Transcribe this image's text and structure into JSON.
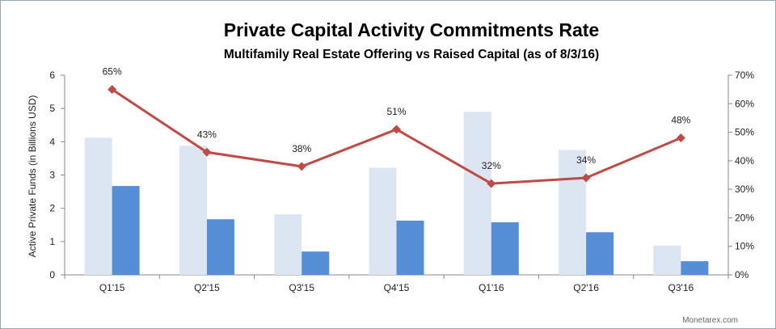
{
  "chart_data": {
    "type": "bar",
    "title": "Private Capital Activity Commitments Rate",
    "subtitle": "Multifamily Real Estate Offering vs Raised Capital (as of 8/3/16)",
    "ylabel": "Active Private Funds (in Billions USD)",
    "categories": [
      "Q1'15",
      "Q2'15",
      "Q3'15",
      "Q4'15",
      "Q1'16",
      "Q2'16",
      "Q3'16"
    ],
    "ylim": [
      0,
      6
    ],
    "y_ticks": [
      "0",
      "1",
      "2",
      "3",
      "4",
      "5",
      "6"
    ],
    "y2lim": [
      0,
      70
    ],
    "y2_ticks": [
      "0%",
      "10%",
      "20%",
      "30%",
      "40%",
      "50%",
      "60%",
      "70%"
    ],
    "grid": false,
    "legend": "none",
    "series": [
      {
        "kind": "bar",
        "values": [
          4.12,
          3.88,
          1.82,
          3.22,
          4.9,
          3.75,
          0.88
        ],
        "color": "#dce6f2"
      },
      {
        "kind": "bar",
        "values": [
          2.67,
          1.67,
          0.7,
          1.63,
          1.58,
          1.28,
          0.41
        ],
        "color": "#558ed5"
      },
      {
        "kind": "line",
        "axis": "secondary",
        "values": [
          65,
          43,
          38,
          51,
          32,
          34,
          48
        ],
        "labels": [
          "65%",
          "43%",
          "38%",
          "51%",
          "32%",
          "34%",
          "48%"
        ],
        "color": "#be4b48"
      }
    ]
  },
  "credit": "Monetarex.com"
}
